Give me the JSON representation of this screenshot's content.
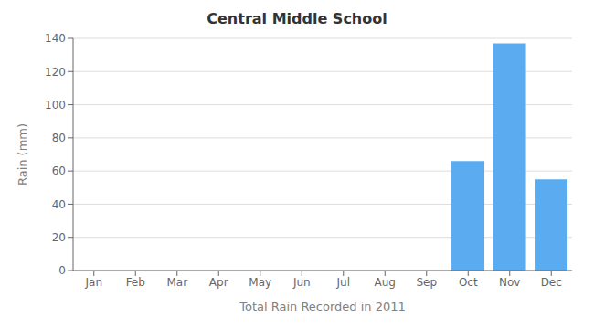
{
  "chart_data": {
    "type": "bar",
    "title": "Central Middle School",
    "xlabel": "Total Rain Recorded in 2011",
    "ylabel": "Rain (mm)",
    "categories": [
      "Jan",
      "Feb",
      "Mar",
      "Apr",
      "May",
      "Jun",
      "Jul",
      "Aug",
      "Sep",
      "Oct",
      "Nov",
      "Dec"
    ],
    "values": [
      0,
      0,
      0,
      0,
      0,
      0,
      0,
      0,
      0,
      66,
      137,
      55
    ],
    "color": "#5aabf0",
    "ylim": [
      0,
      140
    ],
    "yticks": [
      0,
      20,
      40,
      60,
      80,
      100,
      120,
      140
    ],
    "grid": true
  }
}
